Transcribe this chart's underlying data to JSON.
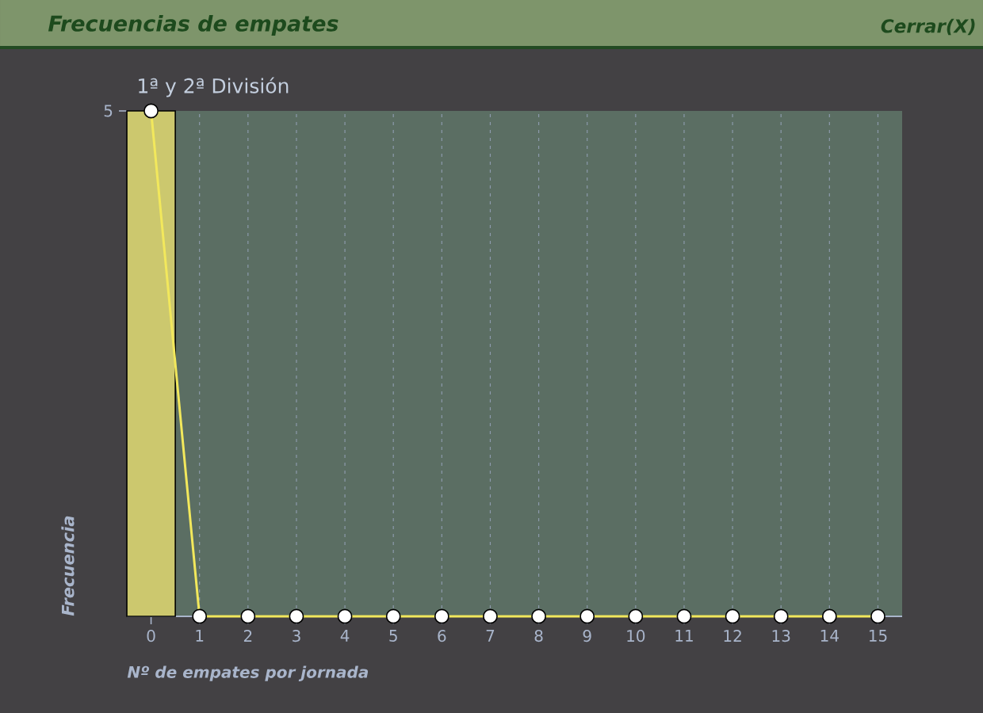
{
  "chart_data": {
    "type": "bar",
    "title": "Frecuencias de empates",
    "subtitle": "1ª y 2ª División",
    "xlabel": "Nº de empates por jornada",
    "ylabel": "Frecuencia",
    "annotations": [
      "Cerrar(X)"
    ],
    "x": [
      0,
      1,
      2,
      3,
      4,
      5,
      6,
      7,
      8,
      9,
      10,
      11,
      12,
      13,
      14,
      15
    ],
    "xlim": [
      -0.5,
      15.5
    ],
    "xticks": [
      0,
      1,
      2,
      3,
      4,
      5,
      6,
      7,
      8,
      9,
      10,
      11,
      12,
      13,
      14,
      15
    ],
    "ylim": [
      0,
      5
    ],
    "yticks": [
      5
    ],
    "grid": "x",
    "marker": "circle",
    "line_style": "solid",
    "series": [
      {
        "x": [
          0
        ],
        "values": [
          5
        ],
        "color": "#ccc86e"
      },
      {
        "type": "line",
        "values": [
          5,
          0,
          0,
          0,
          0,
          0,
          0,
          0,
          0,
          0,
          0,
          0,
          0,
          0,
          0,
          0
        ],
        "color": "#f2e85c"
      }
    ]
  }
}
